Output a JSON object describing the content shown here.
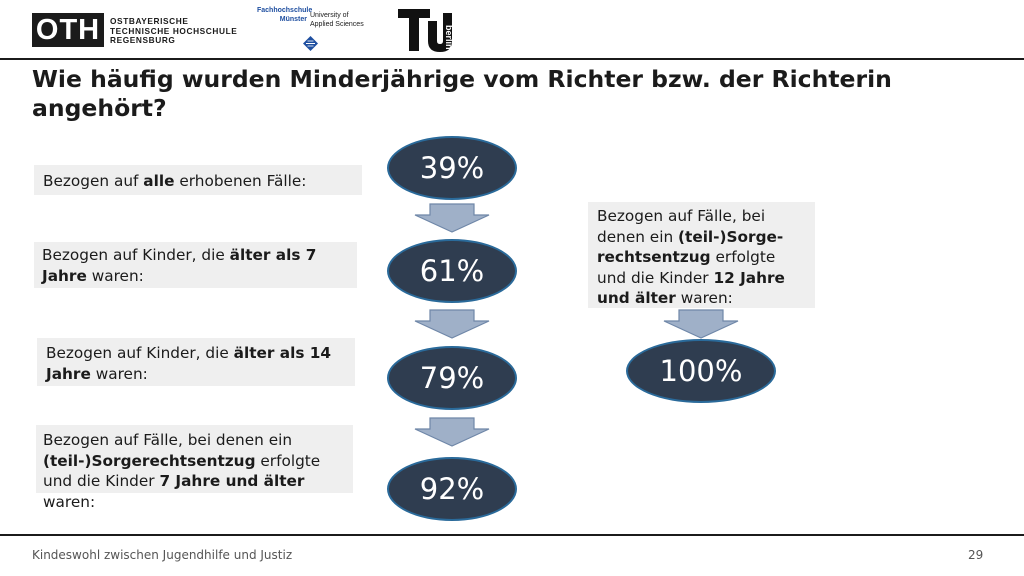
{
  "header": {
    "oth_mark": "OTH",
    "oth_lines": [
      "OSTBAYERISCHE",
      "TECHNISCHE HOCHSCHULE",
      "REGENSBURG"
    ],
    "fh_name": [
      "Fachhochschule",
      "Münster"
    ],
    "fh_sub": [
      "University of",
      "Applied Sciences"
    ],
    "tu_logo_text": "TU berlin"
  },
  "title": "Wie häufig wurden Minderjährige vom Richter bzw. der Richterin angehört?",
  "left_flow": [
    {
      "pre": "Bezogen auf ",
      "bold": "alle",
      "post": " erhobenen Fälle:",
      "value": "39%"
    },
    {
      "pre": "Bezogen auf Kinder, die ",
      "bold": "älter als 7 Jahre",
      "post": " waren:",
      "value": "61%"
    },
    {
      "pre": "Bezogen auf Kinder, die ",
      "bold": "älter als 14 Jahre",
      "post": " waren:",
      "value": "79%"
    },
    {
      "pre": "Bezogen auf Fälle, bei denen ein ",
      "bold": "(teil-)Sorgerechtsentzug",
      "mid": "  erfolgte und die Kinder ",
      "bold2": "7 Jahre und älter",
      "post": " waren:",
      "value": "92%"
    }
  ],
  "right_flow": {
    "pre": "Bezogen auf Fälle, bei denen ein ",
    "bold": "(teil-)Sorge-rechtsentzug",
    "mid": "  erfolgte und die Kinder ",
    "bold2": "12 Jahre und älter",
    "post": " waren:",
    "value": "100%"
  },
  "footer": {
    "text": "Kindeswohl zwischen Jugendhilfe und Justiz",
    "page": "29"
  },
  "colors": {
    "ellipse_fill": "#2f3d50",
    "ellipse_border": "#2a6a9a",
    "arrow_fill": "#9fb0c8",
    "label_bg": "#efefef"
  }
}
